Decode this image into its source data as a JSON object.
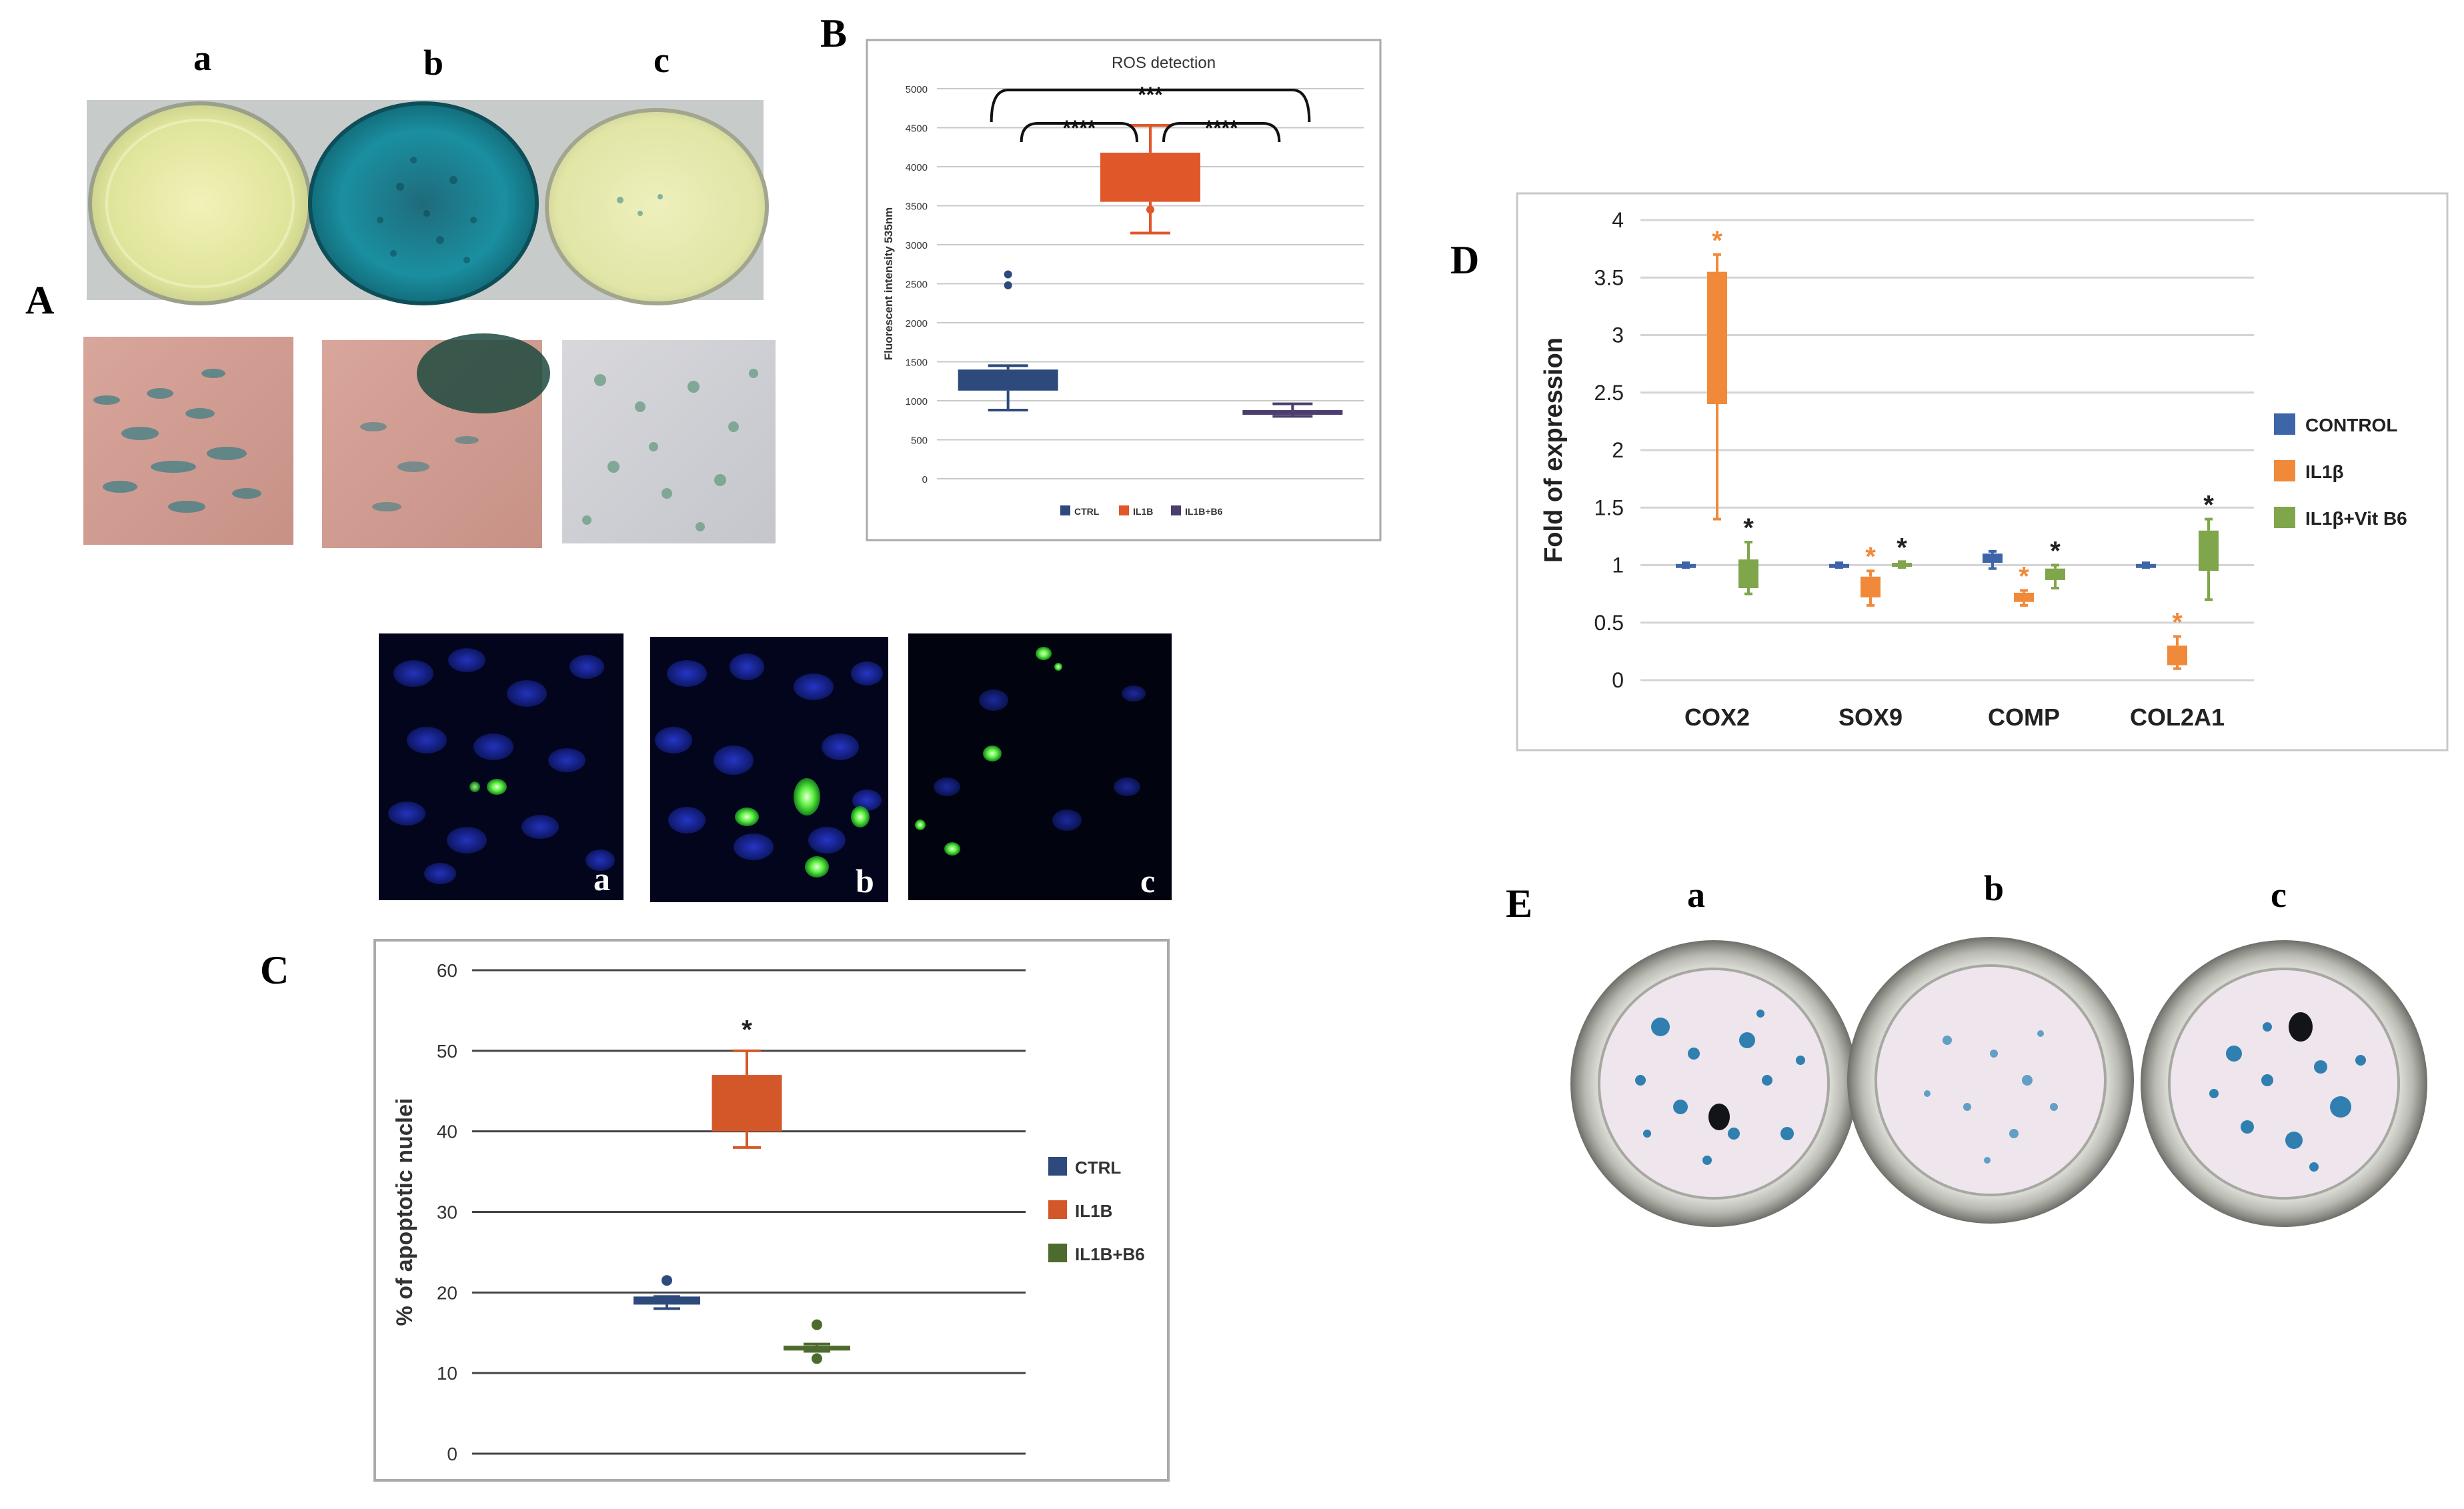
{
  "figure": {
    "panel_labels": {
      "A": "A",
      "B": "B",
      "C": "C",
      "D": "D",
      "E": "E"
    },
    "panel_a": {
      "sublabels": [
        "a",
        "b",
        "c"
      ]
    },
    "panel_c_images": {
      "sublabels": [
        "a",
        "b",
        "c"
      ]
    },
    "panel_e": {
      "sublabels": [
        "a",
        "b",
        "c"
      ]
    }
  },
  "chart_data": [
    {
      "id": "B",
      "type": "box",
      "title": "ROS detection",
      "ylabel": "Fluorescent intensity 535nm",
      "ylim": [
        0,
        5000
      ],
      "yticks": [
        0,
        500,
        1000,
        1500,
        2000,
        2500,
        3000,
        3500,
        4000,
        4500,
        5000
      ],
      "legend": [
        "CTRL",
        "IL1B",
        "IL1B+B6"
      ],
      "legend_position": "bottom",
      "grid": true,
      "series": [
        {
          "name": "CTRL",
          "color": "#2e4a7d",
          "min": 880,
          "q1": 1130,
          "median": 1250,
          "q3": 1400,
          "max": 1450,
          "outliers": [
            2480,
            2620
          ]
        },
        {
          "name": "IL1B",
          "color": "#e0572a",
          "min": 3150,
          "q1": 3550,
          "median": 3850,
          "q3": 4180,
          "max": 4530,
          "outliers": [
            3450,
            3950
          ]
        },
        {
          "name": "IL1B+B6",
          "color": "#4b3d6e",
          "min": 800,
          "q1": 820,
          "median": 850,
          "q3": 880,
          "max": 960,
          "outliers": []
        }
      ],
      "annotations": [
        {
          "from": 0,
          "to": 1,
          "text": "****"
        },
        {
          "from": 1,
          "to": 2,
          "text": "****"
        },
        {
          "from": 0,
          "to": 2,
          "text": "***"
        }
      ]
    },
    {
      "id": "C",
      "type": "box",
      "title": "",
      "ylabel": "% of apoptotic nuclei",
      "ylim": [
        0,
        60
      ],
      "yticks": [
        0,
        10,
        20,
        30,
        40,
        50,
        60
      ],
      "legend": [
        "CTRL",
        "IL1B",
        "IL1B+B6"
      ],
      "legend_position": "right",
      "grid": true,
      "series": [
        {
          "name": "CTRL",
          "color": "#2e4a7d",
          "min": 18,
          "q1": 18.5,
          "median": 19,
          "q3": 19.5,
          "max": 19.5,
          "outliers": [
            21.5
          ]
        },
        {
          "name": "IL1B",
          "color": "#d4572a",
          "min": 38,
          "q1": 40,
          "median": 43,
          "q3": 47,
          "max": 50,
          "outliers": []
        },
        {
          "name": "IL1B+B6",
          "color": "#4e6b2f",
          "min": 12.7,
          "q1": 12.8,
          "median": 13,
          "q3": 13.4,
          "max": 13.6,
          "outliers": [
            16,
            11.8
          ]
        }
      ],
      "annotations": [
        {
          "group": 1,
          "text": "*"
        }
      ]
    },
    {
      "id": "D",
      "type": "box",
      "title": "",
      "ylabel": "Fold of expression",
      "ylim": [
        0,
        4
      ],
      "yticks": [
        "0",
        "0.5",
        "1",
        "1.5",
        "2",
        "2.5",
        "3",
        "3.5",
        "4"
      ],
      "categories": [
        "COX2",
        "SOX9",
        "COMP",
        "COL2A1"
      ],
      "legend": [
        "CONTROL",
        "IL1β",
        "IL1β+Vit B6"
      ],
      "legend_position": "right",
      "grid": true,
      "series": [
        {
          "name": "CONTROL",
          "color": "#3d65a8",
          "boxes": [
            {
              "min": 0.98,
              "q1": 0.99,
              "median": 1.0,
              "q3": 1.01,
              "max": 1.02
            },
            {
              "min": 0.98,
              "q1": 0.99,
              "median": 1.0,
              "q3": 1.01,
              "max": 1.02
            },
            {
              "min": 0.97,
              "q1": 1.02,
              "median": 1.05,
              "q3": 1.1,
              "max": 1.12
            },
            {
              "min": 0.98,
              "q1": 0.99,
              "median": 1.0,
              "q3": 1.01,
              "max": 1.02
            }
          ]
        },
        {
          "name": "IL1β",
          "color": "#f08a3a",
          "boxes": [
            {
              "min": 1.4,
              "q1": 2.4,
              "median": 2.4,
              "q3": 3.55,
              "max": 3.7
            },
            {
              "min": 0.65,
              "q1": 0.72,
              "median": 0.78,
              "q3": 0.9,
              "max": 0.95
            },
            {
              "min": 0.65,
              "q1": 0.68,
              "median": 0.72,
              "q3": 0.76,
              "max": 0.78
            },
            {
              "min": 0.1,
              "q1": 0.13,
              "median": 0.2,
              "q3": 0.3,
              "max": 0.38
            }
          ]
        },
        {
          "name": "IL1β+Vit B6",
          "color": "#7fa64a",
          "boxes": [
            {
              "min": 0.75,
              "q1": 0.8,
              "median": 0.92,
              "q3": 1.05,
              "max": 1.2
            },
            {
              "min": 0.98,
              "q1": 0.99,
              "median": 1.0,
              "q3": 1.02,
              "max": 1.03
            },
            {
              "min": 0.8,
              "q1": 0.87,
              "median": 0.92,
              "q3": 0.97,
              "max": 1.0
            },
            {
              "min": 0.7,
              "q1": 0.95,
              "median": 1.2,
              "q3": 1.3,
              "max": 1.4
            }
          ]
        }
      ],
      "annotations": [
        {
          "category": 0,
          "series": 1,
          "text": "*"
        },
        {
          "category": 0,
          "series": 2,
          "text": "*"
        },
        {
          "category": 1,
          "series": 1,
          "text": "*"
        },
        {
          "category": 1,
          "series": 2,
          "text": "*"
        },
        {
          "category": 2,
          "series": 1,
          "text": "*"
        },
        {
          "category": 2,
          "series": 2,
          "text": "*"
        },
        {
          "category": 3,
          "series": 1,
          "text": "*"
        },
        {
          "category": 3,
          "series": 2,
          "text": "*"
        }
      ]
    }
  ]
}
